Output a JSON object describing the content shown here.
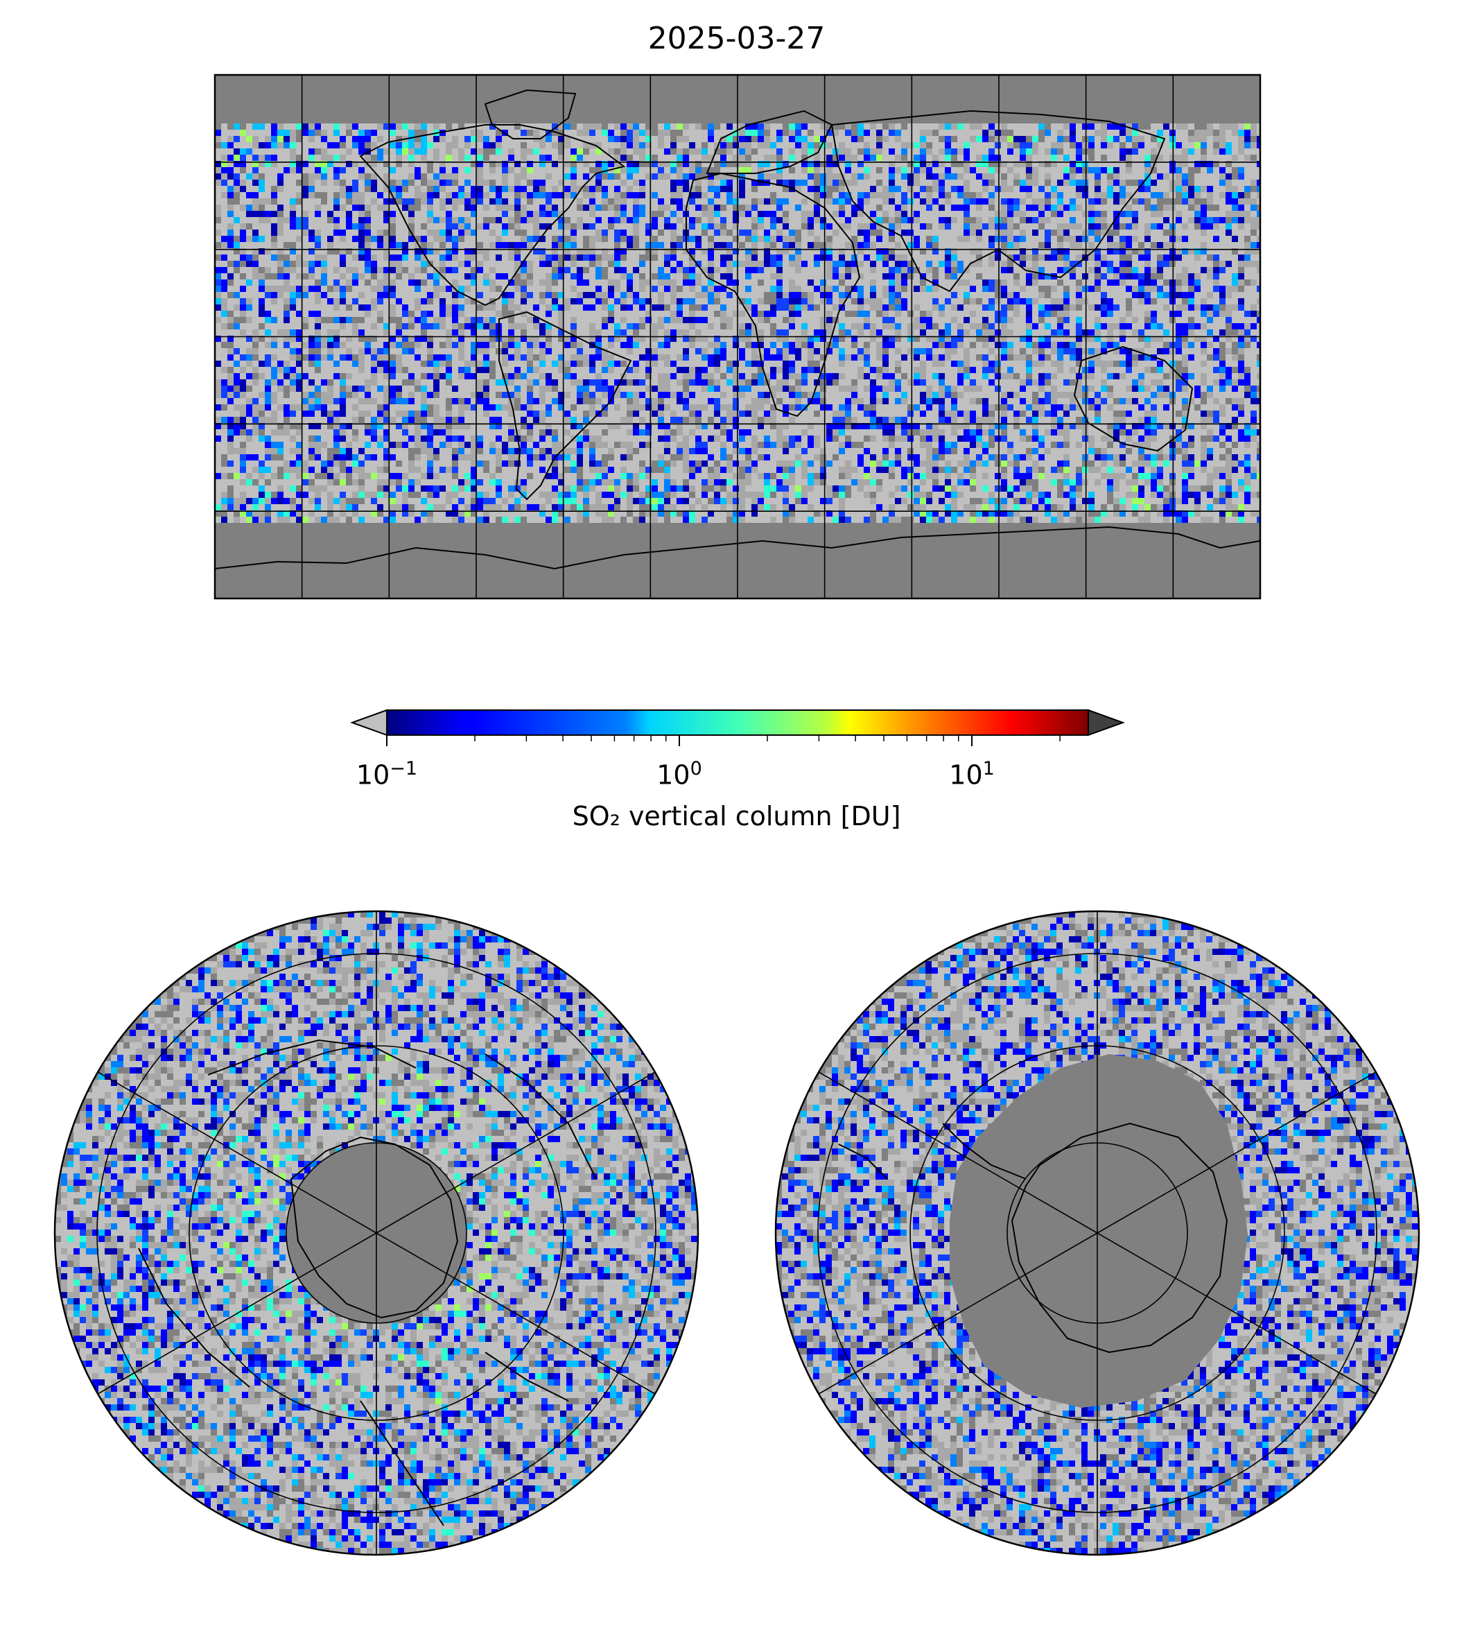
{
  "figure": {
    "title": "2025-03-27",
    "colorbar": {
      "label": "SO₂ vertical column [DU]",
      "scale": "log",
      "range": [
        0.1,
        25
      ],
      "ticks": [
        {
          "base": "10",
          "exp": "−1",
          "value": 0.1
        },
        {
          "base": "10",
          "exp": "0",
          "value": 1
        },
        {
          "base": "10",
          "exp": "1",
          "value": 10
        }
      ],
      "colormap": "jet",
      "under_color": "#c0c0c0",
      "over_color": "#404040",
      "no_data_color": "#808080"
    },
    "panels": [
      {
        "name": "global-map",
        "projection": "plate-carree",
        "grid_lon_step_deg": 30,
        "grid_lat_step_deg": 30
      },
      {
        "name": "north-polar-map",
        "projection": "north-polar-stereographic"
      },
      {
        "name": "south-polar-map",
        "projection": "south-polar-stereographic"
      }
    ]
  }
}
